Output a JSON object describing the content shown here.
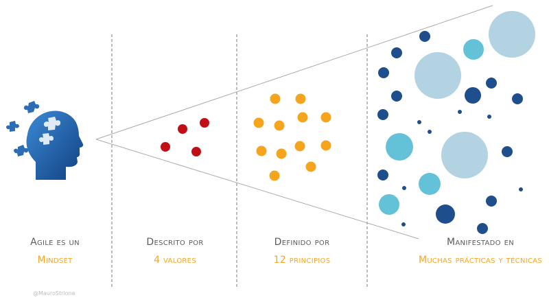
{
  "captions": [
    {
      "line1": "Agile es un",
      "line2": "Mindset"
    },
    {
      "line1": "Descrito por",
      "line2": "4 valores"
    },
    {
      "line1": "Definido por",
      "line2": "12 principios"
    },
    {
      "line1": "Manifestado en",
      "line2": "Muchas prácticas y técnicas"
    }
  ],
  "watermark": "@MauroStrione",
  "colors": {
    "values_dots": "#c00f17",
    "principles_dots": "#f5a51d",
    "practice_dark": "#1f4e8c",
    "practice_mid": "#63c1d8",
    "practice_light": "#b3d3e2",
    "head_blue": "#1f5ca8",
    "divider": "#777777",
    "cone_line": "#aaaaaa"
  },
  "icons": [
    "head-with-puzzle-icon"
  ],
  "dot_groups": {
    "values_count": 4,
    "principles_count": 12
  }
}
